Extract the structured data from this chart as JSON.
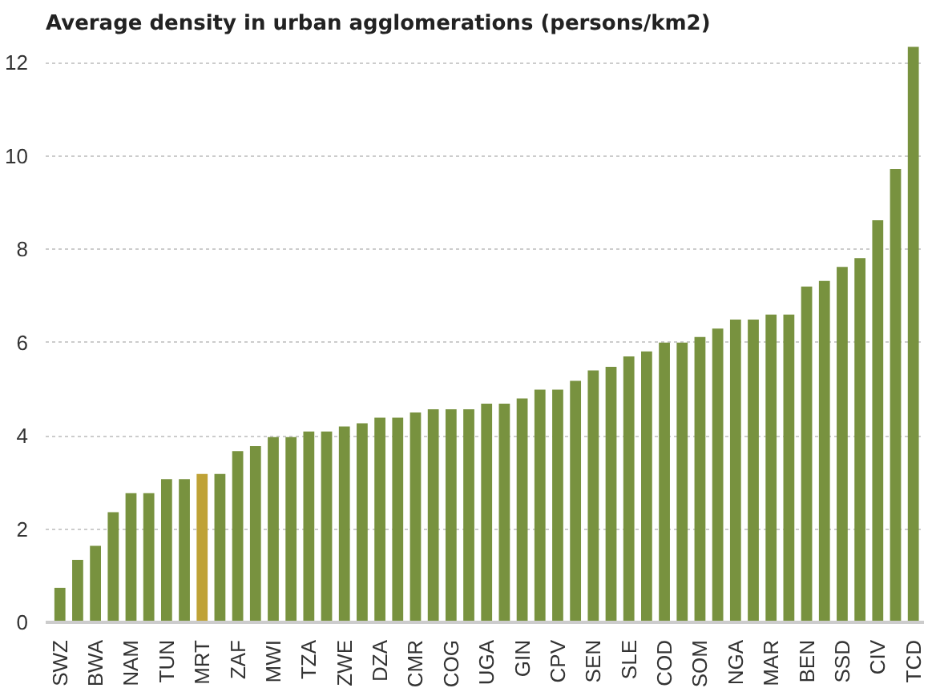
{
  "chart_data": {
    "type": "bar",
    "title": "Average density in urban agglomerations (persons/km2)",
    "categories": [
      "SWZ",
      null,
      "BWA",
      null,
      "NAM",
      null,
      "TUN",
      null,
      "MRT",
      null,
      "ZAF",
      null,
      "MWI",
      null,
      "TZA",
      null,
      "ZWE",
      null,
      "DZA",
      null,
      "CMR",
      null,
      "COG",
      null,
      "UGA",
      null,
      "GIN",
      null,
      "CPV",
      null,
      "SEN",
      null,
      "SLE",
      null,
      "COD",
      null,
      "SOM",
      null,
      "NGA",
      null,
      "MAR",
      null,
      "BEN",
      null,
      "SSD",
      null,
      "CIV",
      null,
      "TCD"
    ],
    "values": [
      0.74,
      1.34,
      1.64,
      2.36,
      2.77,
      2.77,
      3.07,
      3.07,
      3.18,
      3.18,
      3.67,
      3.78,
      3.97,
      3.97,
      4.09,
      4.09,
      4.2,
      4.27,
      4.39,
      4.39,
      4.5,
      4.57,
      4.57,
      4.57,
      4.69,
      4.69,
      4.8,
      4.99,
      4.99,
      5.18,
      5.4,
      5.48,
      5.7,
      5.81,
      6.0,
      6.0,
      6.12,
      6.3,
      6.49,
      6.49,
      6.6,
      6.6,
      7.2,
      7.32,
      7.62,
      7.81,
      8.62,
      9.72,
      12.34
    ],
    "colors": [
      "#78923f",
      "#78923f",
      "#78923f",
      "#78923f",
      "#78923f",
      "#78923f",
      "#78923f",
      "#78923f",
      "#bfa236",
      "#78923f",
      "#78923f",
      "#78923f",
      "#78923f",
      "#78923f",
      "#78923f",
      "#78923f",
      "#78923f",
      "#78923f",
      "#78923f",
      "#78923f",
      "#78923f",
      "#78923f",
      "#78923f",
      "#78923f",
      "#78923f",
      "#78923f",
      "#78923f",
      "#78923f",
      "#78923f",
      "#78923f",
      "#78923f",
      "#78923f",
      "#78923f",
      "#78923f",
      "#78923f",
      "#78923f",
      "#78923f",
      "#78923f",
      "#78923f",
      "#78923f",
      "#78923f",
      "#78923f",
      "#78923f",
      "#78923f",
      "#78923f",
      "#78923f",
      "#78923f",
      "#78923f",
      "#78923f"
    ],
    "ylim": [
      0,
      12.4
    ],
    "yticks": [
      0,
      2,
      4,
      6,
      8,
      10,
      12
    ],
    "grid": "y"
  }
}
